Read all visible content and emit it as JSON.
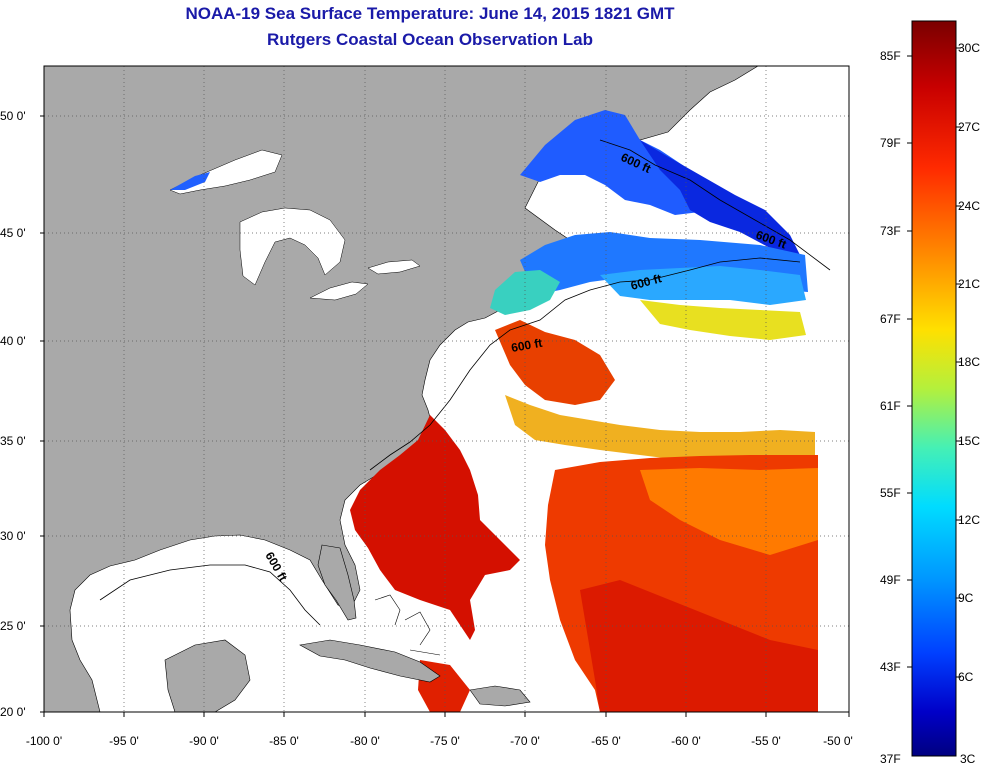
{
  "title": "NOAA-19 Sea Surface Temperature:  June 14, 2015 1821 GMT",
  "subtitle": "Rutgers Coastal Ocean Observation Lab",
  "lat_labels": [
    "50 0'",
    "45 0'",
    "40 0'",
    "35 0'",
    "30 0'",
    "25 0'",
    "20 0'"
  ],
  "lon_labels": [
    "-100 0'",
    "-95 0'",
    "-90 0'",
    "-85 0'",
    "-80 0'",
    "-75 0'",
    "-70 0'",
    "-65 0'",
    "-60 0'",
    "-55 0'",
    "-50 0'"
  ],
  "contour_label": "600 ft",
  "colorbar": {
    "fahrenheit_labels": [
      "85F",
      "79F",
      "73F",
      "67F",
      "61F",
      "55F",
      "49F",
      "43F",
      "37F"
    ],
    "celsius_labels": [
      "30C",
      "27C",
      "24C",
      "21C",
      "18C",
      "15C",
      "12C",
      "9C",
      "6C",
      "3C"
    ],
    "colors": [
      "#7a0000",
      "#c80000",
      "#ff2a00",
      "#ff7a00",
      "#ffd000",
      "#c8f020",
      "#5af0a0",
      "#00e6ff",
      "#0096ff",
      "#0040ff",
      "#0000c0",
      "#00007a"
    ]
  },
  "colors": {
    "land": "#a9a9a9",
    "ocean_nodata": "#ffffff",
    "title_text": "#1a1aa8"
  }
}
